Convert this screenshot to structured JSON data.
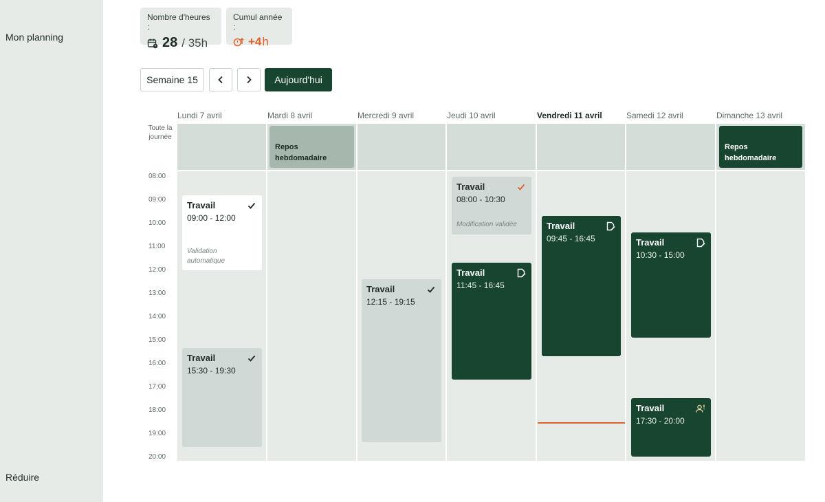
{
  "sidebar": {
    "nav_item": "Mon planning",
    "collapse": "Réduire"
  },
  "stats": {
    "hours": {
      "label": "Nombre d'heures :",
      "value": "28",
      "total": "/ 35h",
      "icon": "calendar-clock-icon"
    },
    "cumul": {
      "label": "Cumul année :",
      "value": "+4",
      "unit": "h",
      "icon": "overtime-icon",
      "color": "#e0622b"
    }
  },
  "toolbar": {
    "week": "Semaine 15",
    "prev_icon": "chevron-left-icon",
    "next_icon": "chevron-right-icon",
    "today": "Aujourd'hui"
  },
  "calendar": {
    "allday_label": "Toute la journée",
    "hours": [
      "08:00",
      "09:00",
      "10:00",
      "11:00",
      "12:00",
      "13:00",
      "14:00",
      "15:00",
      "16:00",
      "17:00",
      "18:00",
      "19:00",
      "20:00"
    ],
    "days": [
      {
        "label": "Lundi 7 avril"
      },
      {
        "label": "Mardi 8 avril"
      },
      {
        "label": "Mercredi 9 avril"
      },
      {
        "label": "Jeudi 10 avril"
      },
      {
        "label": "Vendredi 11 avril",
        "today": true
      },
      {
        "label": "Samedi 12 avril"
      },
      {
        "label": "Dimanche 13 avril"
      }
    ],
    "rest": [
      {
        "label": "Repos hebdomadaire",
        "day": "Mardi 8 avril"
      },
      {
        "label": "Repos hebdomadaire",
        "day": "Dimanche 13 avril"
      }
    ],
    "events": [
      {
        "title": "Travail",
        "time": "09:00 - 12:00",
        "note": "Validation automatique",
        "icon": "check-icon"
      },
      {
        "title": "Travail",
        "time": "15:30 - 19:30",
        "icon": "check-icon"
      },
      {
        "title": "Travail",
        "time": "12:15 - 19:15",
        "icon": "check-icon"
      },
      {
        "title": "Travail",
        "time": "08:00 - 10:30",
        "note": "Modification validée",
        "icon": "check-icon"
      },
      {
        "title": "Travail",
        "time": "11:45 - 16:45",
        "icon": "edit-document-icon"
      },
      {
        "title": "Travail",
        "time": "09:45 - 16:45",
        "icon": "edit-document-icon"
      },
      {
        "title": "Travail",
        "time": "10:30 - 15:00",
        "icon": "edit-document-icon"
      },
      {
        "title": "Travail",
        "time": "17:30 - 20:00",
        "icon": "user-alert-icon"
      }
    ],
    "colors": {
      "dark_green": "#184530",
      "accent_orange": "#e0622b"
    }
  }
}
